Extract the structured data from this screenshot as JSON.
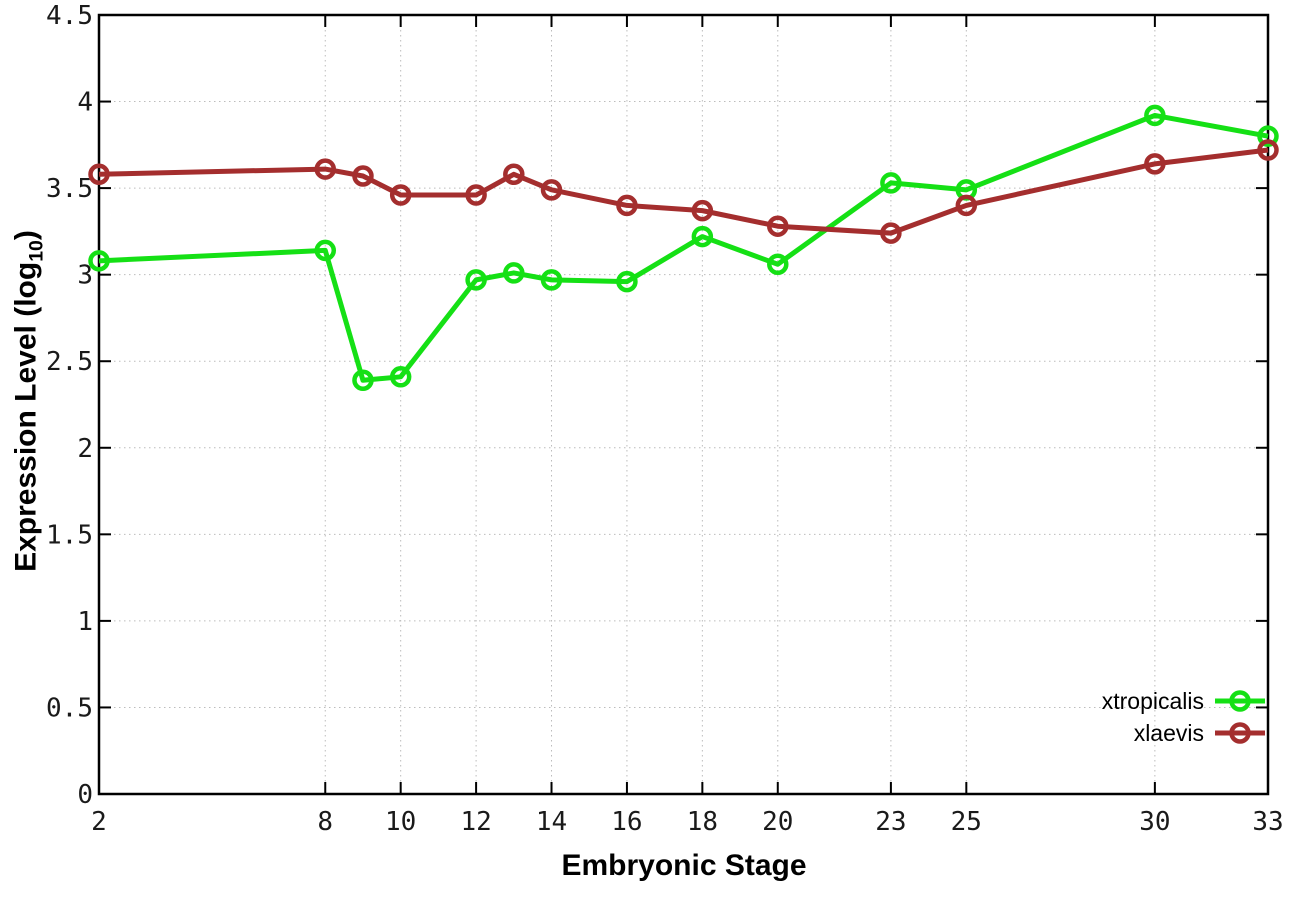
{
  "chart_data": {
    "type": "line",
    "title": "",
    "xlabel": "Embryonic Stage",
    "ylabel_prefix": "Expression Level (log",
    "ylabel_sub": "10",
    "ylabel_suffix": ")",
    "x": [
      2,
      8,
      9,
      10,
      12,
      13,
      14,
      16,
      18,
      20,
      23,
      25,
      30,
      33
    ],
    "x_tick_labels": [
      2,
      8,
      10,
      12,
      14,
      16,
      18,
      20,
      23,
      25,
      30,
      33
    ],
    "y_ticks": [
      0,
      0.5,
      1,
      1.5,
      2,
      2.5,
      3,
      3.5,
      4,
      4.5
    ],
    "xlim": [
      2,
      33
    ],
    "ylim": [
      0,
      4.5
    ],
    "grid": true,
    "marker": "open-circle",
    "legend_position": "bottom-right",
    "series": [
      {
        "name": "xtropicalis",
        "color": "#15e015",
        "values": [
          3.08,
          3.14,
          2.39,
          2.41,
          2.97,
          3.01,
          2.97,
          2.96,
          3.22,
          3.06,
          3.53,
          3.49,
          3.92,
          3.8
        ]
      },
      {
        "name": "xlaevis",
        "color": "#a42e2e",
        "values": [
          3.58,
          3.61,
          3.57,
          3.46,
          3.46,
          3.58,
          3.49,
          3.4,
          3.37,
          3.28,
          3.24,
          3.4,
          3.64,
          3.72
        ]
      }
    ],
    "colors": {
      "background": "#ffffff",
      "axis": "#000000",
      "grid": "#bcbcbc",
      "tick_text": "#1a1a1a"
    }
  }
}
